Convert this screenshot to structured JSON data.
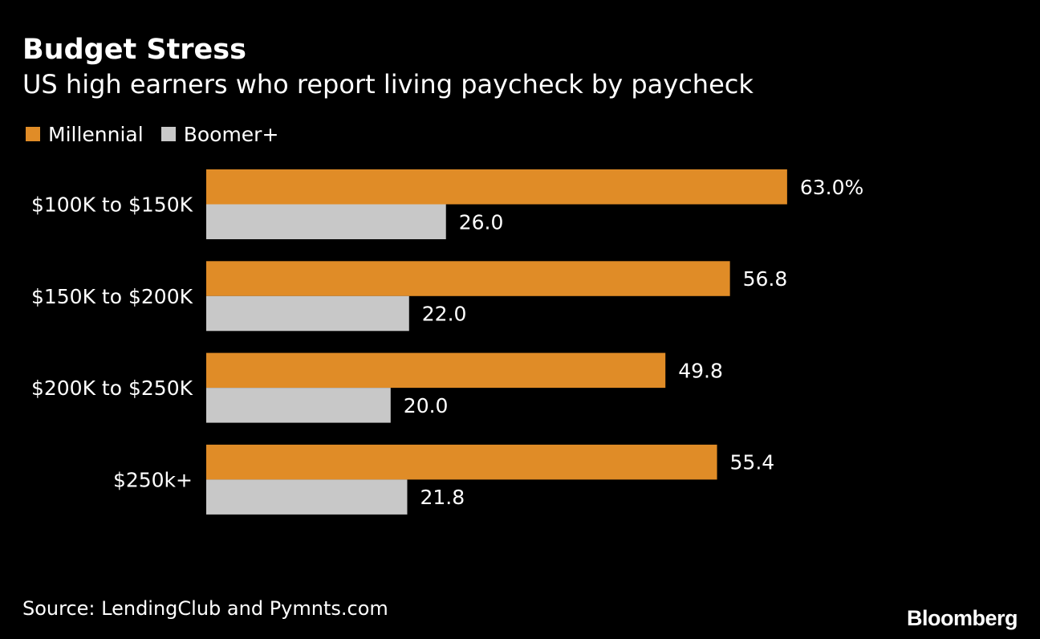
{
  "colors": {
    "background": "#000000",
    "text": "#ffffff",
    "millennial": "#e08c27",
    "boomer": "#c8c8c8"
  },
  "header": {
    "title": "Budget Stress",
    "subtitle": "US high earners who report living paycheck by paycheck"
  },
  "legend": {
    "items": [
      {
        "label": "Millennial",
        "color": "#e08c27"
      },
      {
        "label": "Boomer+",
        "color": "#c8c8c8"
      }
    ]
  },
  "footer": {
    "source": "Source: LendingClub and Pymnts.com",
    "brand": "Bloomberg"
  },
  "chart_data": {
    "type": "bar",
    "orientation": "horizontal",
    "categories": [
      "$100K to $150K",
      "$150K to $200K",
      "$200K to $250K",
      "$250k+"
    ],
    "series": [
      {
        "name": "Millennial",
        "color": "#e08c27",
        "values": [
          63.0,
          56.8,
          49.8,
          55.4
        ],
        "labels": [
          "63.0%",
          "56.8",
          "49.8",
          "55.4"
        ]
      },
      {
        "name": "Boomer+",
        "color": "#c8c8c8",
        "values": [
          26.0,
          22.0,
          20.0,
          21.8
        ],
        "labels": [
          "26.0",
          "22.0",
          "20.0",
          "21.8"
        ]
      }
    ],
    "title": "Budget Stress",
    "subtitle": "US high earners who report living paycheck by paycheck",
    "xlabel": "",
    "ylabel": "",
    "xlim": [
      0,
      100
    ],
    "grid": false,
    "legend_position": "top-left"
  }
}
